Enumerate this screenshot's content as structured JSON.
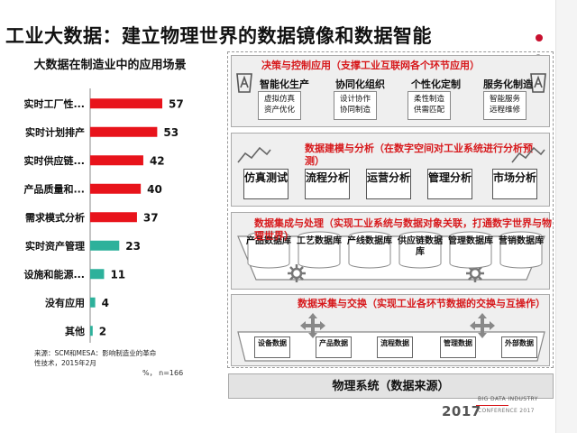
{
  "slide_title": "工业大数据：建立物理世界的数据镜像和数据智能",
  "chart_data": {
    "type": "bar",
    "orientation": "horizontal",
    "title": "大数据在制造业中的应用场景",
    "categories": [
      "实时工厂性...",
      "实时计划排产",
      "实时供应链...",
      "产品质量和...",
      "需求模式分析",
      "实时资产管理",
      "设施和能源...",
      "没有应用",
      "其他"
    ],
    "values": [
      57,
      53,
      42,
      40,
      37,
      23,
      11,
      4,
      2
    ],
    "bar_colors": [
      "#e8131b",
      "#e8131b",
      "#e8131b",
      "#e8131b",
      "#e8131b",
      "#2db19b",
      "#2db19b",
      "#2db19b",
      "#2db19b"
    ],
    "xlim": [
      0,
      60
    ],
    "source": "来源：SCM和MESA：影响制造业的革命性技术，2015年2月",
    "unit_note": "%， n=166"
  },
  "diagram": {
    "decision_layer": {
      "title": "决策与控制应用（支撑工业互联网各个环节应用）",
      "categories": [
        {
          "label": "智能化生产",
          "items": [
            "虚拟仿真",
            "资产优化"
          ]
        },
        {
          "label": "协同化组织",
          "items": [
            "设计协作",
            "协同制造"
          ]
        },
        {
          "label": "个性化定制",
          "items": [
            "柔性制造",
            "供需匹配"
          ]
        },
        {
          "label": "服务化制造",
          "items": [
            "智能服务",
            "远程维修"
          ]
        }
      ]
    },
    "modeling_layer": {
      "title": "数据建模与分析（在数字空间对工业系统进行分析预测）",
      "functions": [
        "仿真测试",
        "流程分析",
        "运营分析",
        "管理分析",
        "市场分析"
      ]
    },
    "integration_layer": {
      "title": "数据集成与处理（实现工业系统与数据对象关联，打通数字世界与物理世界）",
      "databases": [
        "产品数据库",
        "工艺数据库",
        "产线数据库",
        "供应链数据库",
        "管理数据库",
        "营销数据库"
      ]
    },
    "collection_layer": {
      "title": "数据采集与交换（实现工业各环节数据的交换与互操作）",
      "data_sources": [
        "设备数据",
        "产品数据",
        "流程数据",
        "管理数据",
        "外部数据"
      ]
    },
    "physical_system": "物理系统（数据来源）"
  },
  "conference": {
    "name_line1": "BIG DATA INDUSTRY",
    "year": "2017",
    "name_line2": "CONFERENCE 2017"
  },
  "colors": {
    "accent_red": "#d7191c",
    "bar_red": "#e8131b",
    "bar_teal": "#2db19b"
  }
}
